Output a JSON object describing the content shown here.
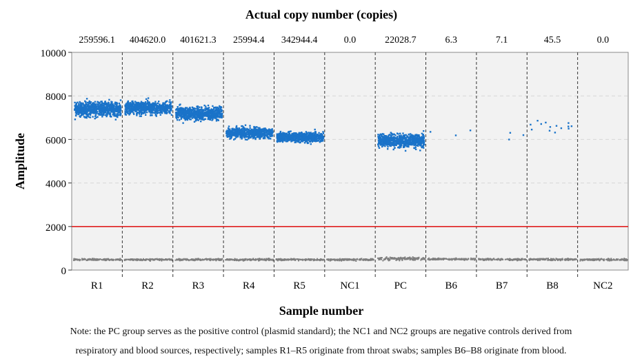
{
  "chart_data": {
    "type": "scatter",
    "title": "Actual copy number (copies)",
    "xlabel": "Sample number",
    "ylabel": "Amplitude",
    "ylim": [
      0,
      10000
    ],
    "yticks": [
      0,
      2000,
      4000,
      6000,
      8000,
      10000
    ],
    "threshold": 2000,
    "categories": [
      "R1",
      "R2",
      "R3",
      "R4",
      "R5",
      "NC1",
      "PC",
      "B6",
      "B7",
      "B8",
      "NC2"
    ],
    "copy_numbers": [
      "259596.1",
      "404620.0",
      "401621.3",
      "25994.4",
      "342944.4",
      "0.0",
      "22028.7",
      "6.3",
      "7.1",
      "45.5",
      "0.0"
    ],
    "positive_cluster_center": [
      7400,
      7450,
      7200,
      6300,
      6100,
      null,
      5950,
      6400,
      6200,
      6600,
      null
    ],
    "positive_cluster_spread": [
      350,
      300,
      300,
      250,
      220,
      null,
      320,
      400,
      400,
      250,
      null
    ],
    "positive_droplet_count": [
      1400,
      1600,
      1600,
      900,
      1400,
      0,
      1300,
      3,
      3,
      14,
      0
    ],
    "negative_cluster_center": [
      480,
      480,
      480,
      480,
      480,
      480,
      520,
      500,
      490,
      490,
      480
    ],
    "grid": true,
    "colors": {
      "positive": "#1a73c9",
      "negative": "#7f7f7f",
      "threshold": "#e02020",
      "plot_bg": "#f2f2f2",
      "grid": "#d6d6d6"
    }
  },
  "note": {
    "line1": "Note: the PC group serves as the positive control (plasmid standard); the NC1 and NC2 groups are negative controls derived from",
    "line2": "respiratory and blood sources, respectively; samples R1–R5 originate from throat swabs; samples B6–B8 originate from blood."
  }
}
